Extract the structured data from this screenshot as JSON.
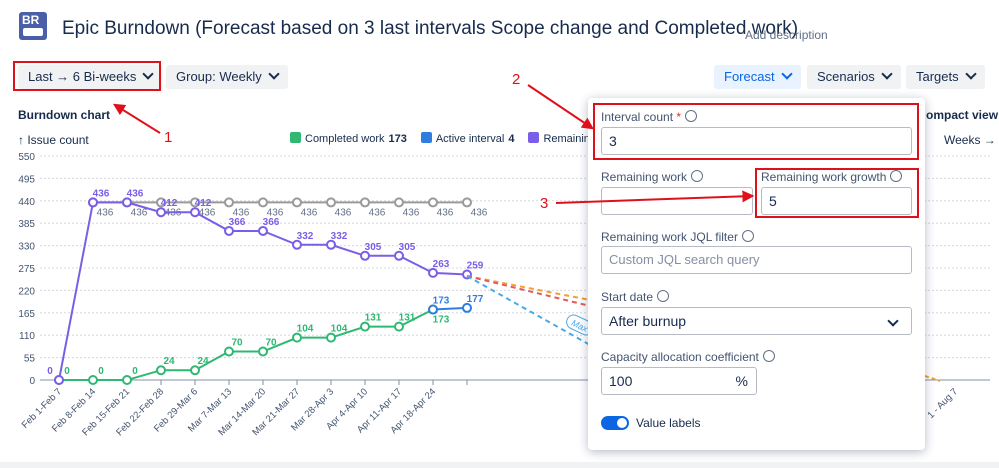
{
  "header": {
    "logo": "BR",
    "title": "Epic Burndown (Forecast based on 3 last intervals Scope change and Completed work)",
    "add_description": "Add description"
  },
  "toolbar": {
    "range": "Last → 6 Bi-weeks",
    "group": "Group: Weekly",
    "forecast": "Forecast",
    "scenarios": "Scenarios",
    "targets": "Targets"
  },
  "chart": {
    "type": "line",
    "title": "Burndown chart",
    "compact_view": "ompact view",
    "y_axis_label": "↑ Issue count",
    "x_axis_label": "Weeks →",
    "categories": [
      "Feb 1-Feb 7",
      "Feb 8-Feb 14",
      "Feb 15-Feb 21",
      "Feb 22-Feb 28",
      "Feb 29-Mar 6",
      "Mar 7-Mar 13",
      "Mar 14-Mar 20",
      "Mar 21-Mar 27",
      "Mar 28-Apr 3",
      "Apr 4-Apr 10",
      "Apr 11-Apr 17",
      "Apr 18-Apr 24",
      null
    ],
    "x_tail_label": "1 - Aug 7",
    "forecast_tag": "Max",
    "ylim": [
      0,
      550
    ],
    "yticks": [
      0,
      55,
      110,
      165,
      220,
      275,
      330,
      385,
      440,
      495,
      550
    ],
    "grid": true,
    "series": [
      {
        "name": "Completed work",
        "total": 173,
        "color": "#2eb872",
        "values": [
          0,
          0,
          0,
          24,
          24,
          70,
          70,
          104,
          104,
          131,
          131,
          173,
          null
        ]
      },
      {
        "name": "Active interval",
        "total": 4,
        "color": "#2f7de1",
        "values": [
          null,
          null,
          null,
          null,
          null,
          null,
          null,
          null,
          null,
          null,
          null,
          173,
          177
        ]
      },
      {
        "name": "Remaining",
        "color": "#7b5ee8",
        "values": [
          0,
          436,
          436,
          412,
          412,
          366,
          366,
          332,
          332,
          305,
          305,
          263,
          259
        ]
      },
      {
        "color": "#9a9a9a",
        "values": [
          null,
          436,
          436,
          436,
          436,
          436,
          436,
          436,
          436,
          436,
          436,
          436,
          436
        ]
      }
    ]
  },
  "panel": {
    "interval_count": {
      "label": "Interval count",
      "required": "*",
      "value": "3"
    },
    "remaining_work": {
      "label": "Remaining work"
    },
    "remaining_work_growth": {
      "label": "Remaining work growth",
      "value": "5"
    },
    "jql_filter": {
      "label": "Remaining work JQL filter",
      "placeholder": "Custom JQL search query"
    },
    "start_date": {
      "label": "Start date",
      "value": "After burnup"
    },
    "capacity": {
      "label": "Capacity allocation coefficient",
      "value": "100",
      "unit": "%"
    },
    "value_labels": {
      "label": "Value labels"
    }
  },
  "annotations": [
    "1",
    "2",
    "3"
  ]
}
